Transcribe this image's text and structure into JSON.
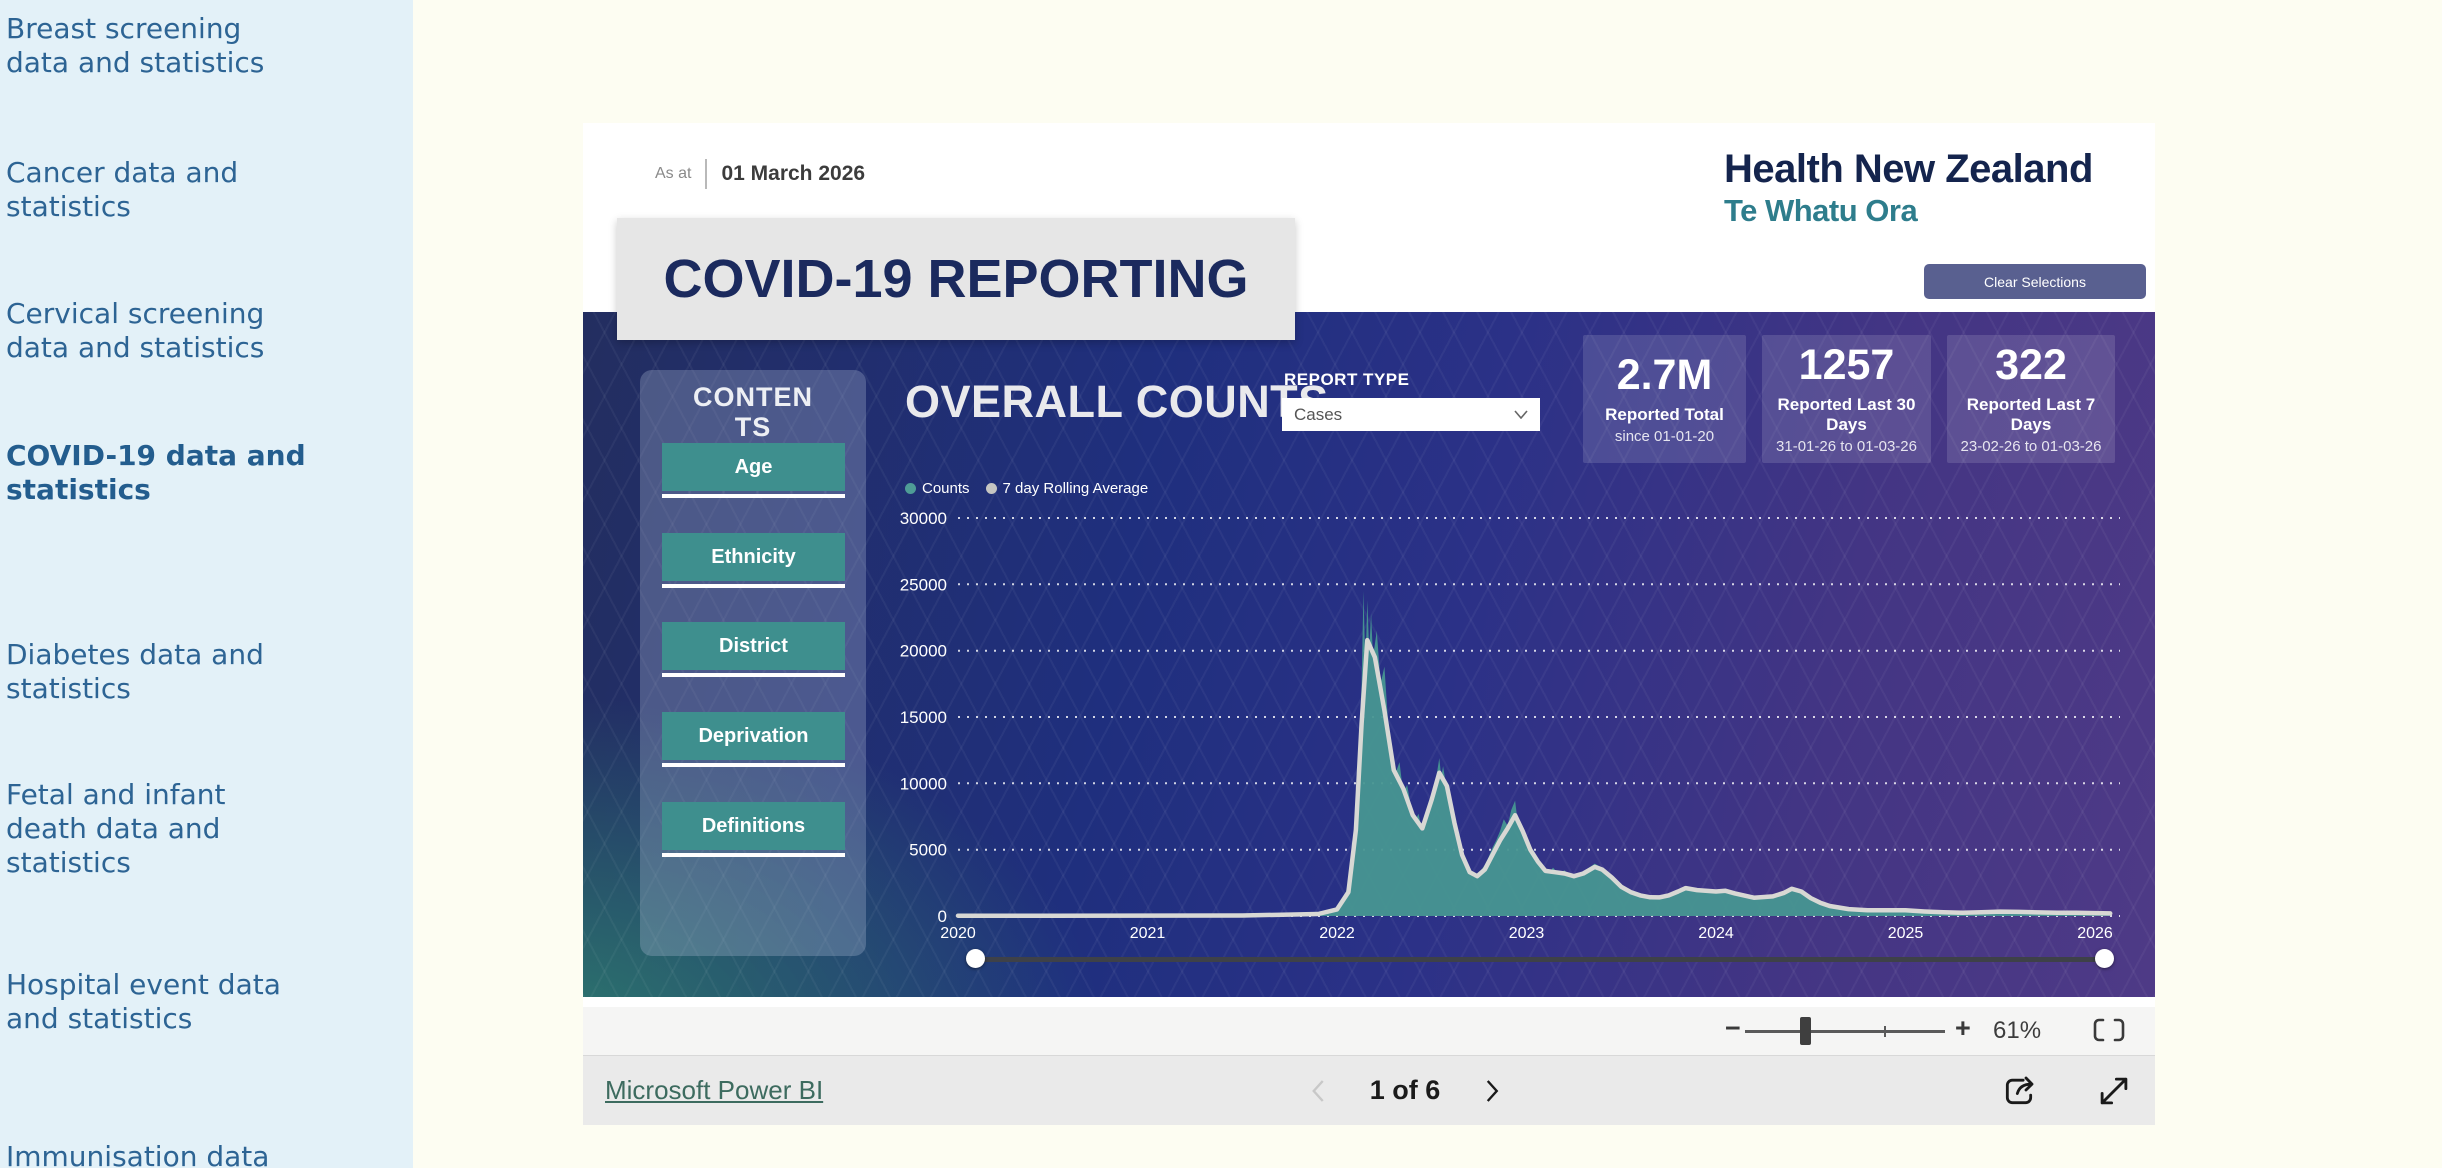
{
  "sidebar": {
    "items": [
      {
        "label": "Breast screening\ndata and statistics",
        "active": false
      },
      {
        "label": "Cancer data and\nstatistics",
        "active": false
      },
      {
        "label": "Cervical screening\ndata and statistics",
        "active": false
      },
      {
        "label": "COVID-19 data and\nstatistics",
        "active": true
      },
      {
        "label": "Diabetes data and\nstatistics",
        "active": false
      },
      {
        "label": "Fetal and infant\ndeath data and\nstatistics",
        "active": false
      },
      {
        "label": "Hospital event data\nand statistics",
        "active": false
      },
      {
        "label": "Immunisation data\nand statistics",
        "active": false
      }
    ]
  },
  "report": {
    "as_at_label": "As at",
    "as_at_date": "01 March 2026",
    "logo_line1": "Health New Zealand",
    "logo_line2": "Te Whatu Ora",
    "clear_selections": "Clear Selections",
    "title": "COVID-19 REPORTING",
    "contents_title": "CONTENTS",
    "contents_buttons": [
      {
        "label": "Age"
      },
      {
        "label": "Ethnicity"
      },
      {
        "label": "District"
      },
      {
        "label": "Deprivation"
      },
      {
        "label": "Definitions"
      }
    ],
    "section_title": "OVERALL COUNTS",
    "report_type_label": "REPORT TYPE",
    "report_type_selected": "Cases",
    "stats": [
      {
        "value": "2.7M",
        "label": "Reported Total",
        "sub": "since 01-01-20"
      },
      {
        "value": "1257",
        "label": "Reported Last 30 Days",
        "sub": "31-01-26 to 01-03-26"
      },
      {
        "value": "322",
        "label": "Reported Last 7 Days",
        "sub": "23-02-26 to 01-03-26"
      }
    ]
  },
  "chart_data": {
    "type": "area",
    "title": "OVERALL COUNTS",
    "xlabel": "",
    "ylabel": "",
    "xlim": [
      2020,
      2026.1
    ],
    "ylim": [
      0,
      30000
    ],
    "x_ticks": [
      2020,
      2021,
      2022,
      2023,
      2024,
      2025,
      2026
    ],
    "y_ticks": [
      0,
      5000,
      10000,
      15000,
      20000,
      25000,
      30000
    ],
    "grid": "dashed-horizontal",
    "legend_position": "top-left",
    "legend": [
      {
        "name": "Counts",
        "color": "#4E9C96"
      },
      {
        "name": "7 day Rolling Average",
        "color": "#C6C6C2"
      }
    ],
    "series": [
      {
        "name": "Counts",
        "type": "area",
        "color": "#479691",
        "points": [
          [
            2020.0,
            40
          ],
          [
            2020.1,
            60
          ],
          [
            2020.2,
            140
          ],
          [
            2020.24,
            190
          ],
          [
            2020.28,
            110
          ],
          [
            2020.35,
            50
          ],
          [
            2020.5,
            35
          ],
          [
            2020.65,
            55
          ],
          [
            2020.8,
            45
          ],
          [
            2021.0,
            40
          ],
          [
            2021.15,
            55
          ],
          [
            2021.3,
            45
          ],
          [
            2021.5,
            60
          ],
          [
            2021.62,
            130
          ],
          [
            2021.68,
            210
          ],
          [
            2021.74,
            160
          ],
          [
            2021.8,
            120
          ],
          [
            2021.85,
            260
          ],
          [
            2021.9,
            220
          ],
          [
            2021.95,
            380
          ],
          [
            2022.0,
            650
          ],
          [
            2022.04,
            1400
          ],
          [
            2022.07,
            3200
          ],
          [
            2022.09,
            6500
          ],
          [
            2022.11,
            11000
          ],
          [
            2022.13,
            17500
          ],
          [
            2022.14,
            24500
          ],
          [
            2022.15,
            18500
          ],
          [
            2022.16,
            23800
          ],
          [
            2022.17,
            20000
          ],
          [
            2022.18,
            22800
          ],
          [
            2022.19,
            19500
          ],
          [
            2022.21,
            21500
          ],
          [
            2022.23,
            17500
          ],
          [
            2022.25,
            18800
          ],
          [
            2022.27,
            14500
          ],
          [
            2022.29,
            12800
          ],
          [
            2022.31,
            10800
          ],
          [
            2022.33,
            11600
          ],
          [
            2022.35,
            9200
          ],
          [
            2022.37,
            9900
          ],
          [
            2022.39,
            8300
          ],
          [
            2022.41,
            7100
          ],
          [
            2022.43,
            7700
          ],
          [
            2022.45,
            6400
          ],
          [
            2022.47,
            7000
          ],
          [
            2022.49,
            8100
          ],
          [
            2022.51,
            9400
          ],
          [
            2022.53,
            11000
          ],
          [
            2022.54,
            11900
          ],
          [
            2022.55,
            10500
          ],
          [
            2022.56,
            11300
          ],
          [
            2022.58,
            9400
          ],
          [
            2022.6,
            7900
          ],
          [
            2022.62,
            6300
          ],
          [
            2022.64,
            5100
          ],
          [
            2022.66,
            4300
          ],
          [
            2022.68,
            3700
          ],
          [
            2022.7,
            3250
          ],
          [
            2022.72,
            2950
          ],
          [
            2022.74,
            3150
          ],
          [
            2022.76,
            3450
          ],
          [
            2022.78,
            3850
          ],
          [
            2022.8,
            4450
          ],
          [
            2022.82,
            5150
          ],
          [
            2022.84,
            5700
          ],
          [
            2022.86,
            6400
          ],
          [
            2022.88,
            7300
          ],
          [
            2022.9,
            6800
          ],
          [
            2022.92,
            8000
          ],
          [
            2022.94,
            8700
          ],
          [
            2022.95,
            7500
          ],
          [
            2022.97,
            6900
          ],
          [
            2022.99,
            6100
          ],
          [
            2023.01,
            5300
          ],
          [
            2023.03,
            4700
          ],
          [
            2023.06,
            4050
          ],
          [
            2023.09,
            3550
          ],
          [
            2023.12,
            3250
          ],
          [
            2023.14,
            3650
          ],
          [
            2023.17,
            3150
          ],
          [
            2023.2,
            3450
          ],
          [
            2023.24,
            2950
          ],
          [
            2023.28,
            3150
          ],
          [
            2023.32,
            3550
          ],
          [
            2023.36,
            3950
          ],
          [
            2023.4,
            3650
          ],
          [
            2023.44,
            3050
          ],
          [
            2023.48,
            2450
          ],
          [
            2023.52,
            2050
          ],
          [
            2023.56,
            1750
          ],
          [
            2023.6,
            1550
          ],
          [
            2023.64,
            1430
          ],
          [
            2023.68,
            1380
          ],
          [
            2023.72,
            1480
          ],
          [
            2023.76,
            1650
          ],
          [
            2023.8,
            1950
          ],
          [
            2023.84,
            2250
          ],
          [
            2023.88,
            2100
          ],
          [
            2023.92,
            1950
          ],
          [
            2023.96,
            1880
          ],
          [
            2024.0,
            1830
          ],
          [
            2024.04,
            1980
          ],
          [
            2024.08,
            1830
          ],
          [
            2024.12,
            1630
          ],
          [
            2024.16,
            1480
          ],
          [
            2024.2,
            1380
          ],
          [
            2024.24,
            1330
          ],
          [
            2024.28,
            1430
          ],
          [
            2024.32,
            1580
          ],
          [
            2024.36,
            1830
          ],
          [
            2024.4,
            2180
          ],
          [
            2024.44,
            1930
          ],
          [
            2024.48,
            1530
          ],
          [
            2024.52,
            1130
          ],
          [
            2024.56,
            880
          ],
          [
            2024.6,
            720
          ],
          [
            2024.65,
            600
          ],
          [
            2024.7,
            520
          ],
          [
            2024.75,
            470
          ],
          [
            2024.8,
            430
          ],
          [
            2024.85,
            410
          ],
          [
            2024.9,
            440
          ],
          [
            2024.95,
            470
          ],
          [
            2025.0,
            430
          ],
          [
            2025.1,
            340
          ],
          [
            2025.2,
            280
          ],
          [
            2025.3,
            250
          ],
          [
            2025.4,
            280
          ],
          [
            2025.5,
            330
          ],
          [
            2025.6,
            310
          ],
          [
            2025.7,
            270
          ],
          [
            2025.8,
            250
          ],
          [
            2025.9,
            240
          ],
          [
            2026.0,
            220
          ],
          [
            2026.08,
            200
          ]
        ]
      },
      {
        "name": "7 day Rolling Average",
        "type": "line",
        "color": "#D8D8D4",
        "points": [
          [
            2020.0,
            20
          ],
          [
            2020.5,
            25
          ],
          [
            2021.0,
            30
          ],
          [
            2021.5,
            40
          ],
          [
            2021.9,
            150
          ],
          [
            2022.0,
            500
          ],
          [
            2022.06,
            1800
          ],
          [
            2022.1,
            6500
          ],
          [
            2022.13,
            14500
          ],
          [
            2022.16,
            20800
          ],
          [
            2022.2,
            19500
          ],
          [
            2022.25,
            15500
          ],
          [
            2022.3,
            11000
          ],
          [
            2022.35,
            9600
          ],
          [
            2022.4,
            7600
          ],
          [
            2022.45,
            6600
          ],
          [
            2022.5,
            8800
          ],
          [
            2022.54,
            10800
          ],
          [
            2022.58,
            9800
          ],
          [
            2022.62,
            7000
          ],
          [
            2022.66,
            4600
          ],
          [
            2022.7,
            3300
          ],
          [
            2022.74,
            3000
          ],
          [
            2022.78,
            3500
          ],
          [
            2022.82,
            4600
          ],
          [
            2022.86,
            5700
          ],
          [
            2022.9,
            6600
          ],
          [
            2022.94,
            7600
          ],
          [
            2022.98,
            6400
          ],
          [
            2023.02,
            5000
          ],
          [
            2023.06,
            4100
          ],
          [
            2023.1,
            3400
          ],
          [
            2023.15,
            3300
          ],
          [
            2023.2,
            3200
          ],
          [
            2023.25,
            3000
          ],
          [
            2023.3,
            3200
          ],
          [
            2023.36,
            3700
          ],
          [
            2023.4,
            3500
          ],
          [
            2023.45,
            2900
          ],
          [
            2023.5,
            2200
          ],
          [
            2023.55,
            1800
          ],
          [
            2023.6,
            1550
          ],
          [
            2023.65,
            1420
          ],
          [
            2023.7,
            1400
          ],
          [
            2023.75,
            1550
          ],
          [
            2023.8,
            1850
          ],
          [
            2023.84,
            2100
          ],
          [
            2023.9,
            1950
          ],
          [
            2024.0,
            1850
          ],
          [
            2024.05,
            1900
          ],
          [
            2024.1,
            1700
          ],
          [
            2024.2,
            1380
          ],
          [
            2024.3,
            1480
          ],
          [
            2024.36,
            1750
          ],
          [
            2024.4,
            2050
          ],
          [
            2024.45,
            1850
          ],
          [
            2024.5,
            1350
          ],
          [
            2024.55,
            1000
          ],
          [
            2024.6,
            750
          ],
          [
            2024.7,
            520
          ],
          [
            2024.8,
            430
          ],
          [
            2024.9,
            440
          ],
          [
            2025.0,
            430
          ],
          [
            2025.1,
            340
          ],
          [
            2025.2,
            280
          ],
          [
            2025.3,
            250
          ],
          [
            2025.4,
            280
          ],
          [
            2025.5,
            330
          ],
          [
            2025.6,
            310
          ],
          [
            2025.7,
            270
          ],
          [
            2025.8,
            250
          ],
          [
            2025.9,
            240
          ],
          [
            2026.0,
            215
          ],
          [
            2026.08,
            195
          ]
        ]
      }
    ]
  },
  "toolbar": {
    "zoom_out": "−",
    "zoom_in": "+",
    "zoom_percent": "61%"
  },
  "footer": {
    "brand": "Microsoft Power BI",
    "page_indicator": "1 of 6"
  },
  "colors": {
    "page_background": "#FDFDF2",
    "sidebar_background": "#E3F1F8",
    "sidebar_text": "#2D6494",
    "panel_navy": "#1F2F7E",
    "panel_purple": "#4E3A86",
    "panel_teal": "#2D7C6F",
    "accent_teal_button": "#3E8F8E",
    "clear_button": "#596090",
    "title_navy": "#1B2A5E",
    "logo_navy": "#14244D",
    "logo_teal": "#2E7D8C"
  }
}
